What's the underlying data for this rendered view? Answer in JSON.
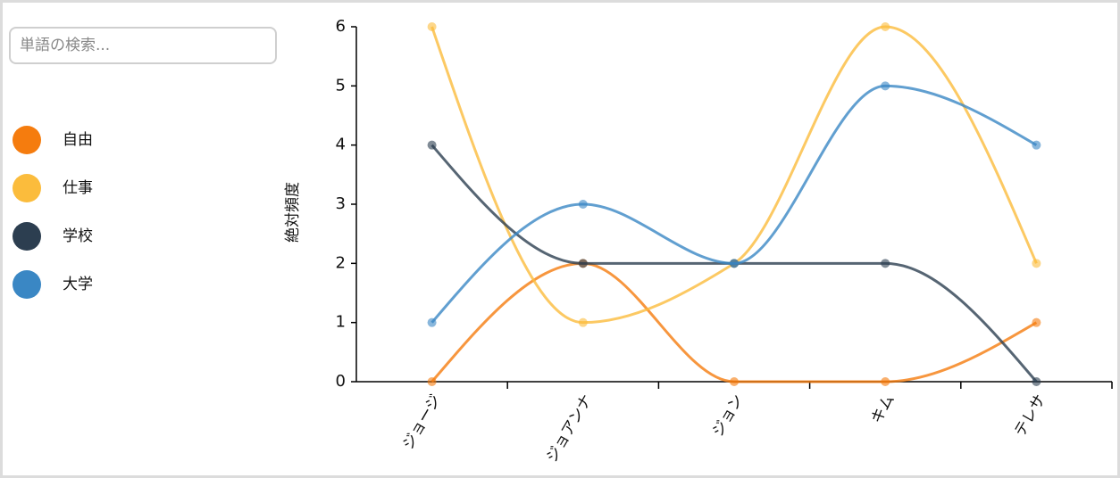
{
  "search": {
    "placeholder": "単語の検索..."
  },
  "chart_data": {
    "type": "line",
    "y_label": "絶対頻度",
    "categories": [
      "ジョージ",
      "ジョアンナ",
      "ジョン",
      "キム",
      "テレサ"
    ],
    "series": [
      {
        "name": "自由",
        "color": "#f57c0e",
        "values": [
          0,
          2,
          0,
          0,
          1
        ]
      },
      {
        "name": "仕事",
        "color": "#fbbc3c",
        "values": [
          6,
          1,
          2,
          6,
          2
        ]
      },
      {
        "name": "学校",
        "color": "#2c3e50",
        "values": [
          4,
          2,
          2,
          2,
          0
        ]
      },
      {
        "name": "大学",
        "color": "#3a87c4",
        "values": [
          1,
          3,
          2,
          5,
          4
        ]
      }
    ],
    "ylim": [
      0,
      6
    ],
    "yticks": [
      0,
      1,
      2,
      3,
      4,
      5,
      6
    ]
  }
}
